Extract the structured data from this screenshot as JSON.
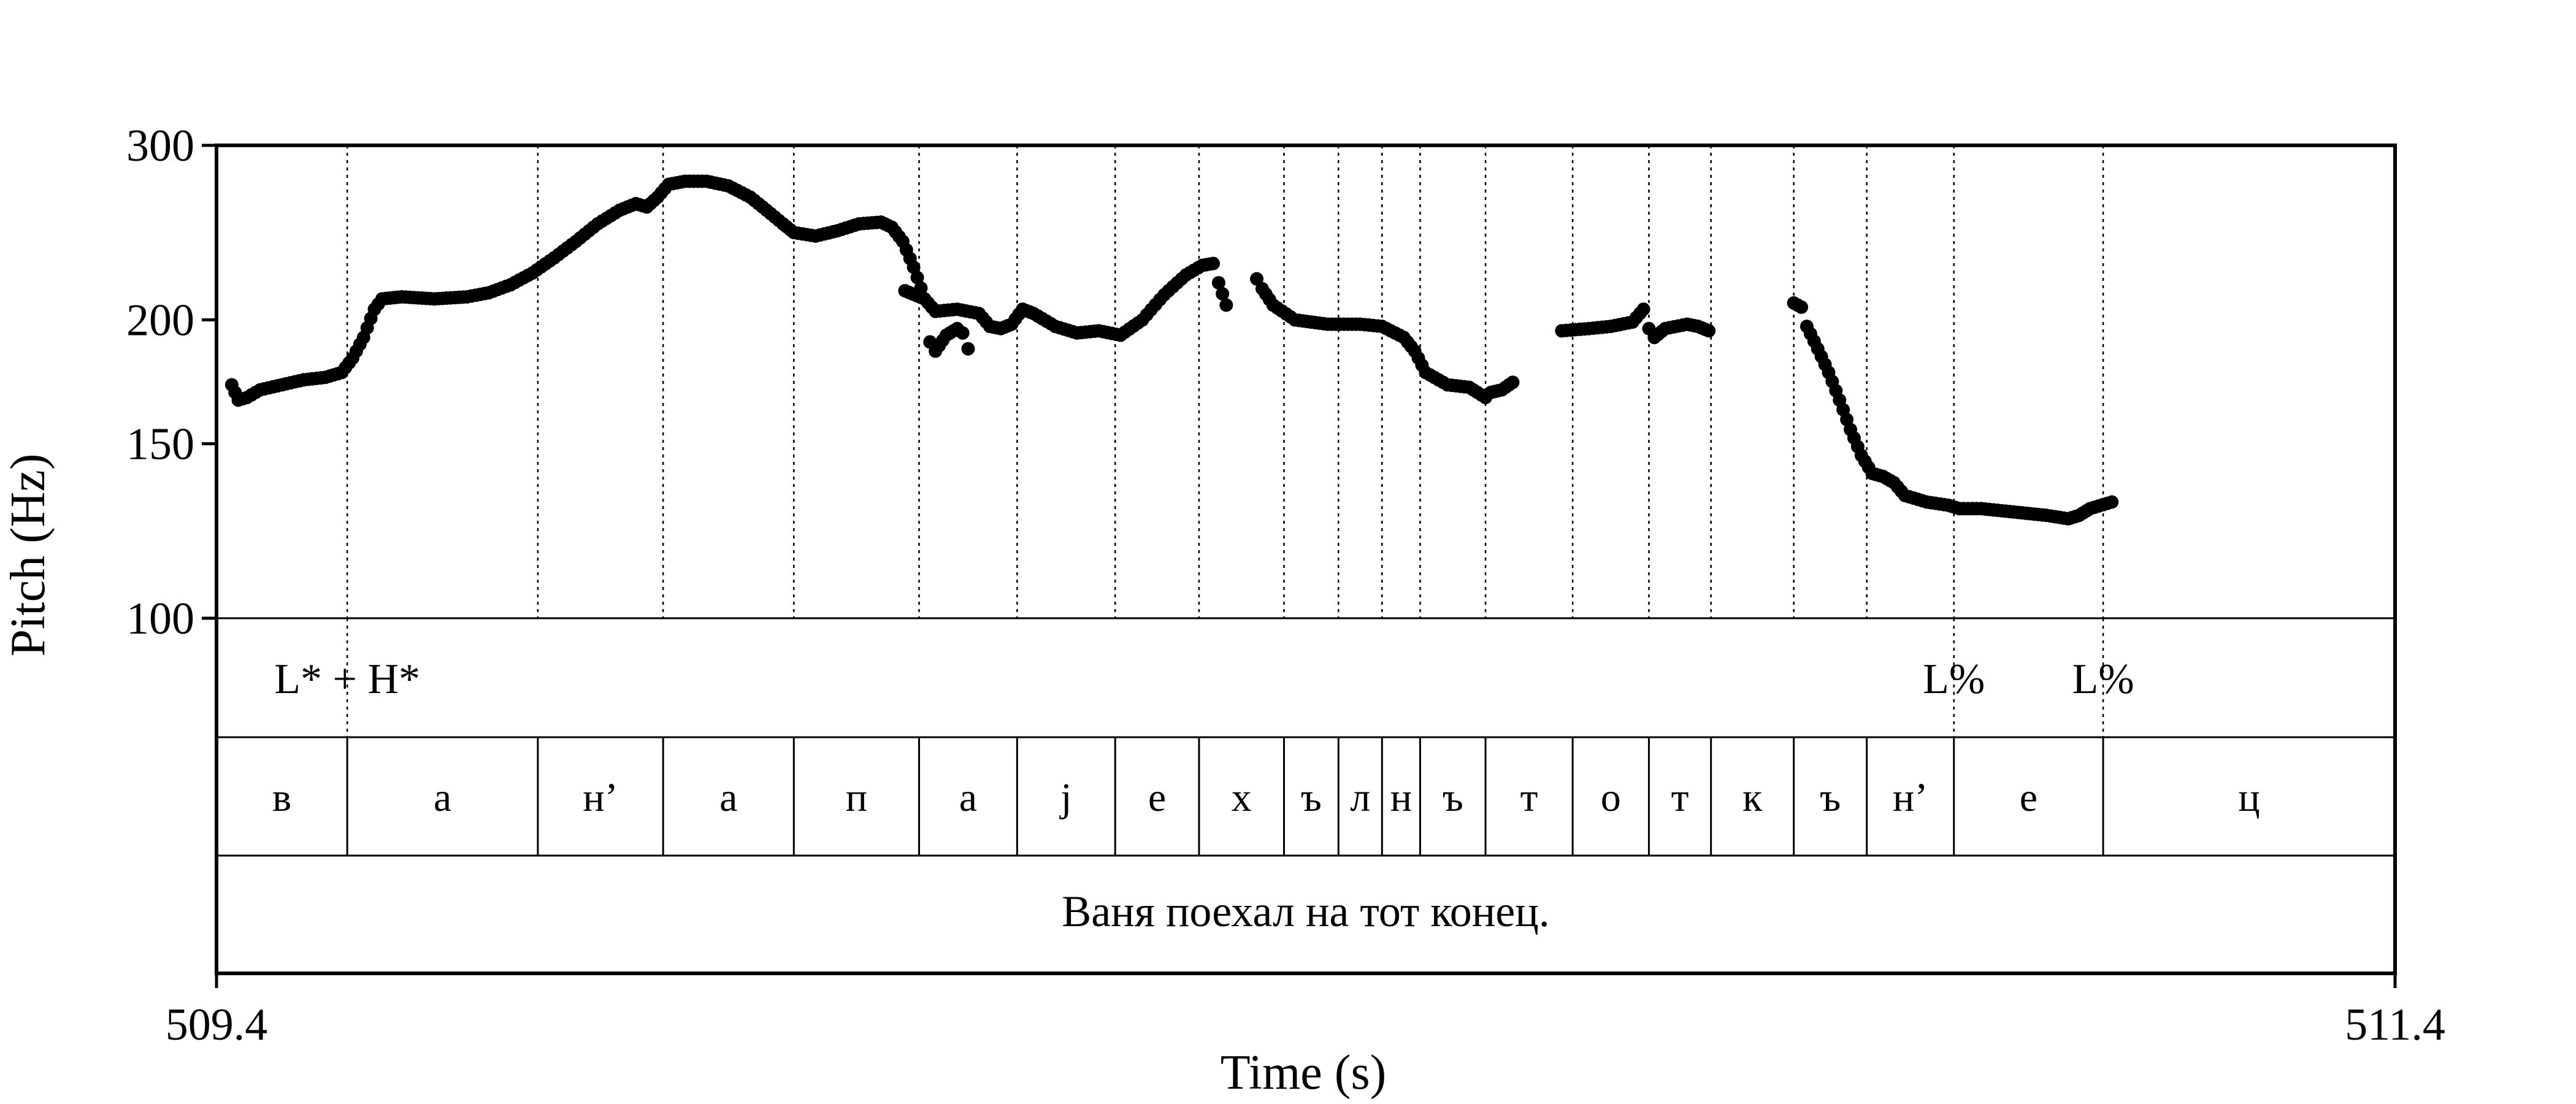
{
  "chart_data": {
    "type": "scatter",
    "title": "",
    "ylabel": "Pitch (Hz)",
    "xlabel": "Time (s)",
    "xlim": [
      509.4,
      511.4
    ],
    "ylim": [
      100,
      300
    ],
    "y_scale": "log",
    "y_ticks": [
      100,
      150,
      200,
      300
    ],
    "x_tick_labels": [
      "509.4",
      "511.4"
    ],
    "grid": false,
    "pitch_segments": [
      [
        [
          509.414,
          172
        ],
        [
          509.42,
          166
        ],
        [
          509.428,
          167
        ],
        [
          509.44,
          170
        ],
        [
          509.46,
          172
        ],
        [
          509.48,
          174
        ],
        [
          509.5,
          175
        ],
        [
          509.515,
          177
        ],
        [
          509.525,
          183
        ],
        [
          509.535,
          192
        ],
        [
          509.545,
          205
        ],
        [
          509.552,
          210
        ],
        [
          509.57,
          211
        ],
        [
          509.6,
          210
        ],
        [
          509.63,
          211
        ],
        [
          509.65,
          213
        ],
        [
          509.67,
          217
        ],
        [
          509.69,
          223
        ],
        [
          509.71,
          231
        ],
        [
          509.73,
          240
        ],
        [
          509.75,
          250
        ],
        [
          509.77,
          258
        ],
        [
          509.785,
          262
        ],
        [
          509.795,
          260
        ],
        [
          509.805,
          266
        ],
        [
          509.815,
          274
        ],
        [
          509.83,
          276
        ],
        [
          509.85,
          276
        ],
        [
          509.87,
          273
        ],
        [
          509.89,
          266
        ],
        [
          509.905,
          258
        ],
        [
          509.92,
          250
        ],
        [
          509.93,
          245
        ],
        [
          509.95,
          243
        ],
        [
          509.97,
          246
        ],
        [
          509.99,
          250
        ],
        [
          510.01,
          251
        ],
        [
          510.02,
          248
        ],
        [
          510.03,
          240
        ],
        [
          510.04,
          226
        ],
        [
          510.05,
          210
        ],
        [
          510.055,
          190
        ],
        [
          510.06,
          186
        ],
        [
          510.07,
          193
        ],
        [
          510.08,
          196
        ],
        [
          510.085,
          194
        ],
        [
          510.09,
          187
        ]
      ],
      [
        [
          510.032,
          214
        ],
        [
          510.05,
          210
        ],
        [
          510.06,
          204
        ],
        [
          510.08,
          205
        ],
        [
          510.1,
          203
        ],
        [
          510.11,
          197
        ],
        [
          510.12,
          196
        ],
        [
          510.13,
          198
        ],
        [
          510.14,
          205
        ],
        [
          510.15,
          203
        ],
        [
          510.17,
          197
        ],
        [
          510.19,
          194
        ],
        [
          510.21,
          195
        ],
        [
          510.23,
          193
        ],
        [
          510.25,
          200
        ],
        [
          510.27,
          212
        ],
        [
          510.29,
          222
        ],
        [
          510.305,
          227
        ],
        [
          510.315,
          228
        ],
        [
          510.32,
          218
        ],
        [
          510.327,
          207
        ]
      ],
      [
        [
          510.355,
          220
        ],
        [
          510.36,
          215
        ],
        [
          510.37,
          207
        ],
        [
          510.39,
          200
        ],
        [
          510.42,
          198
        ],
        [
          510.45,
          198
        ],
        [
          510.47,
          197
        ],
        [
          510.49,
          192
        ],
        [
          510.5,
          186
        ],
        [
          510.51,
          177
        ],
        [
          510.53,
          172
        ],
        [
          510.55,
          171
        ],
        [
          510.565,
          167
        ],
        [
          510.57,
          169
        ],
        [
          510.58,
          170
        ],
        [
          510.59,
          173
        ]
      ],
      [
        [
          510.635,
          195
        ],
        [
          510.66,
          196
        ],
        [
          510.68,
          197
        ],
        [
          510.7,
          199
        ],
        [
          510.71,
          205
        ],
        [
          510.715,
          196
        ],
        [
          510.72,
          192
        ],
        [
          510.73,
          196
        ],
        [
          510.75,
          198
        ],
        [
          510.76,
          197
        ],
        [
          510.77,
          195
        ]
      ],
      [
        [
          510.848,
          208
        ],
        [
          510.855,
          206
        ],
        [
          510.86,
          197
        ],
        [
          510.87,
          187
        ],
        [
          510.88,
          177
        ],
        [
          510.89,
          166
        ],
        [
          510.9,
          155
        ],
        [
          510.91,
          146
        ],
        [
          510.92,
          140
        ],
        [
          510.93,
          139
        ],
        [
          510.94,
          137
        ],
        [
          510.95,
          133
        ],
        [
          510.97,
          131
        ],
        [
          510.99,
          130
        ],
        [
          511.0,
          129
        ],
        [
          511.02,
          129
        ],
        [
          511.05,
          128
        ],
        [
          511.08,
          127
        ],
        [
          511.1,
          126
        ],
        [
          511.11,
          127
        ],
        [
          511.12,
          129
        ],
        [
          511.14,
          131
        ]
      ]
    ],
    "boundaries": [
      509.52,
      509.695,
      509.81,
      509.93,
      510.045,
      510.135,
      510.225,
      510.302,
      510.38,
      510.43,
      510.47,
      510.505,
      510.565,
      510.645,
      510.715,
      510.772,
      510.848,
      510.915,
      510.995,
      511.132
    ],
    "tiers": {
      "tones": [
        {
          "t": 509.52,
          "label": "L* + H*",
          "anchor": "center"
        },
        {
          "t": 510.995,
          "label": "L%",
          "anchor": "center"
        },
        {
          "t": 511.132,
          "label": "L%",
          "anchor": "center"
        }
      ],
      "segments": [
        {
          "start": 509.4,
          "end": 509.52,
          "label": "в"
        },
        {
          "start": 509.52,
          "end": 509.695,
          "label": "а"
        },
        {
          "start": 509.695,
          "end": 509.81,
          "label": "н’"
        },
        {
          "start": 509.81,
          "end": 509.93,
          "label": "а"
        },
        {
          "start": 509.93,
          "end": 510.045,
          "label": "п"
        },
        {
          "start": 510.045,
          "end": 510.135,
          "label": "а"
        },
        {
          "start": 510.135,
          "end": 510.225,
          "label": "j"
        },
        {
          "start": 510.225,
          "end": 510.302,
          "label": "е"
        },
        {
          "start": 510.302,
          "end": 510.38,
          "label": "х"
        },
        {
          "start": 510.38,
          "end": 510.43,
          "label": "ъ"
        },
        {
          "start": 510.43,
          "end": 510.47,
          "label": "л"
        },
        {
          "start": 510.47,
          "end": 510.505,
          "label": "н"
        },
        {
          "start": 510.505,
          "end": 510.565,
          "label": "ъ"
        },
        {
          "start": 510.565,
          "end": 510.645,
          "label": "т"
        },
        {
          "start": 510.645,
          "end": 510.715,
          "label": "о"
        },
        {
          "start": 510.715,
          "end": 510.772,
          "label": "т"
        },
        {
          "start": 510.772,
          "end": 510.848,
          "label": "к"
        },
        {
          "start": 510.848,
          "end": 510.915,
          "label": "ъ"
        },
        {
          "start": 510.915,
          "end": 510.995,
          "label": "н’"
        },
        {
          "start": 510.995,
          "end": 511.132,
          "label": "е"
        },
        {
          "start": 511.132,
          "end": 511.4,
          "label": "ц"
        }
      ],
      "sentence": "Ваня поехал на тот конец."
    }
  }
}
